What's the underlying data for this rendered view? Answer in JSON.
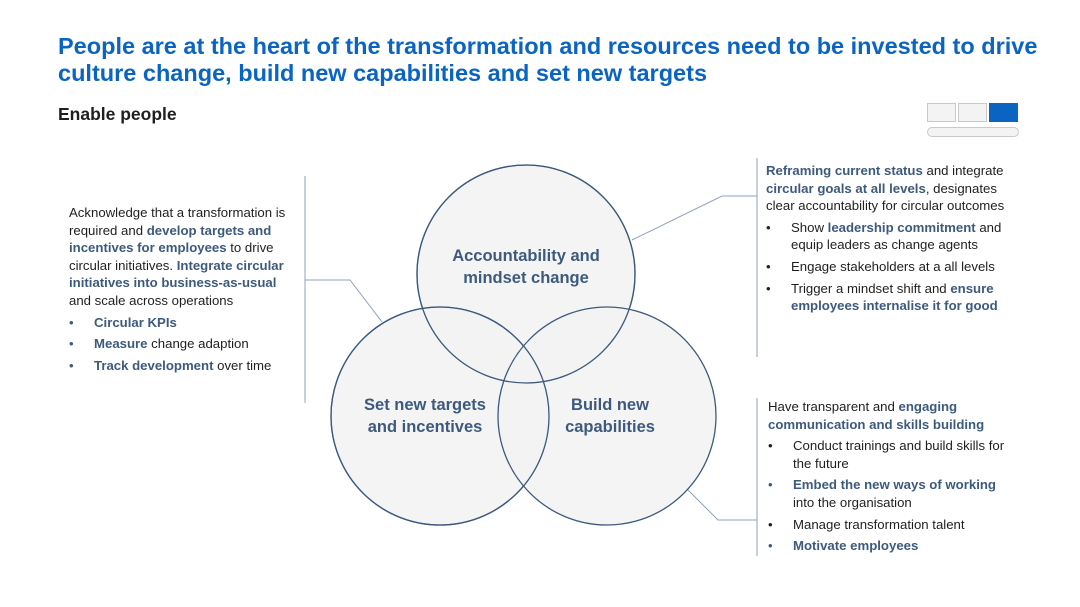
{
  "title": "People are at the heart of the transformation and resources need to be invested to drive culture change, build new capabilities and set new targets",
  "subtitle": "Enable people",
  "circles": {
    "top": "Accountability and mindset change",
    "left": "Set new targets and incentives",
    "right": "Build new capabilities"
  },
  "left_block": {
    "intro": [
      {
        "t": "Acknowledge that a transformation is required and ",
        "b": false
      },
      {
        "t": "develop targets and incentives for employees",
        "b": true
      },
      {
        "t": " to drive circular initiatives. ",
        "b": false
      },
      {
        "t": "Integrate circular initiatives into business-as-usual",
        "b": true
      },
      {
        "t": " and scale across operations",
        "b": false
      }
    ],
    "bullets": [
      [
        {
          "t": "Circular KPIs",
          "b": true
        }
      ],
      [
        {
          "t": "Measure",
          "b": true
        },
        {
          "t": " change adaption",
          "b": false
        }
      ],
      [
        {
          "t": "Track development",
          "b": true
        },
        {
          "t": " over time",
          "b": false
        }
      ]
    ]
  },
  "top_right_block": {
    "intro": [
      {
        "t": "Reframing current status",
        "b": true
      },
      {
        "t": " and integrate ",
        "b": false
      },
      {
        "t": "circular goals at all levels",
        "b": true
      },
      {
        "t": ", designates clear accountability for circular outcomes",
        "b": false
      }
    ],
    "bullets": [
      [
        {
          "t": "Show ",
          "b": false
        },
        {
          "t": "leadership commitment",
          "b": true
        },
        {
          "t": " and equip leaders as change agents",
          "b": false
        }
      ],
      [
        {
          "t": "Engage stakeholders at a all levels",
          "b": false
        }
      ],
      [
        {
          "t": "Trigger a mindset shift and ",
          "b": false
        },
        {
          "t": "ensure employees internalise it for good",
          "b": true
        }
      ]
    ]
  },
  "bottom_right_block": {
    "intro": [
      {
        "t": "Have transparent and ",
        "b": false
      },
      {
        "t": "engaging communication and skills building",
        "b": true
      }
    ],
    "bullets": [
      [
        {
          "t": "Conduct trainings and build skills for the future",
          "b": false
        }
      ],
      [
        {
          "t": "Embed the new ways of working",
          "b": true
        },
        {
          "t": " into the organisation",
          "b": false
        }
      ],
      [
        {
          "t": "Manage transformation talent",
          "b": false
        }
      ],
      [
        {
          "t": "Motivate employees",
          "b": true
        }
      ]
    ]
  },
  "colors": {
    "title": "#0a64c2",
    "highlight": "#3d5a7d",
    "circle_fill": "#f2f2f2",
    "circle_stroke": "#3d5a7d",
    "connector": "#8fa3bd"
  }
}
